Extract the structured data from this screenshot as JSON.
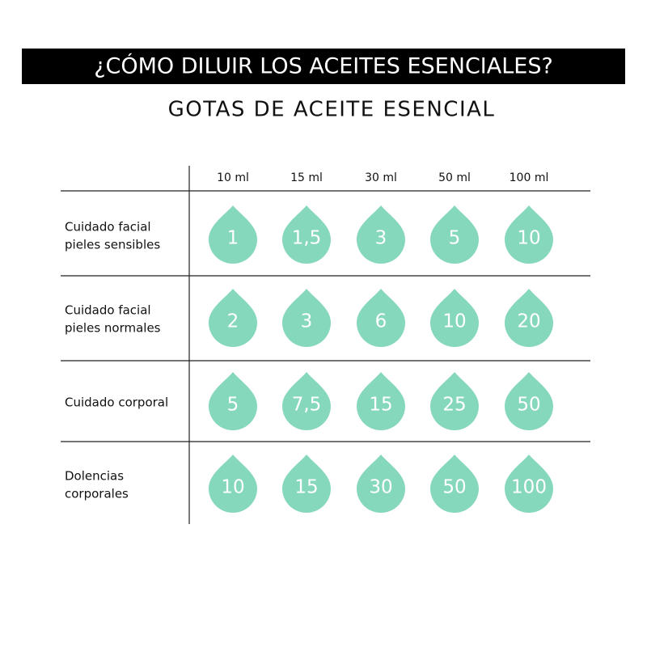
{
  "header": {
    "title": "¿CÓMO DILUIR LOS ACEITES ESENCIALES?",
    "subtitle": "GOTAS DE ACEITE ESENCIAL"
  },
  "table": {
    "columns": [
      "10 ml",
      "15 ml",
      "30 ml",
      "50 ml",
      "100 ml"
    ],
    "rows": [
      {
        "label": [
          "Cuidado facial",
          "pieles sensibles"
        ],
        "values": [
          "1",
          "1,5",
          "3",
          "5",
          "10"
        ]
      },
      {
        "label": [
          "Cuidado facial",
          "pieles normales"
        ],
        "values": [
          "2",
          "3",
          "6",
          "10",
          "20"
        ]
      },
      {
        "label": [
          "Cuidado corporal"
        ],
        "values": [
          "5",
          "7,5",
          "15",
          "25",
          "50"
        ]
      },
      {
        "label": [
          "Dolencias",
          "corporales"
        ],
        "values": [
          "10",
          "15",
          "30",
          "50",
          "100"
        ]
      }
    ]
  }
}
